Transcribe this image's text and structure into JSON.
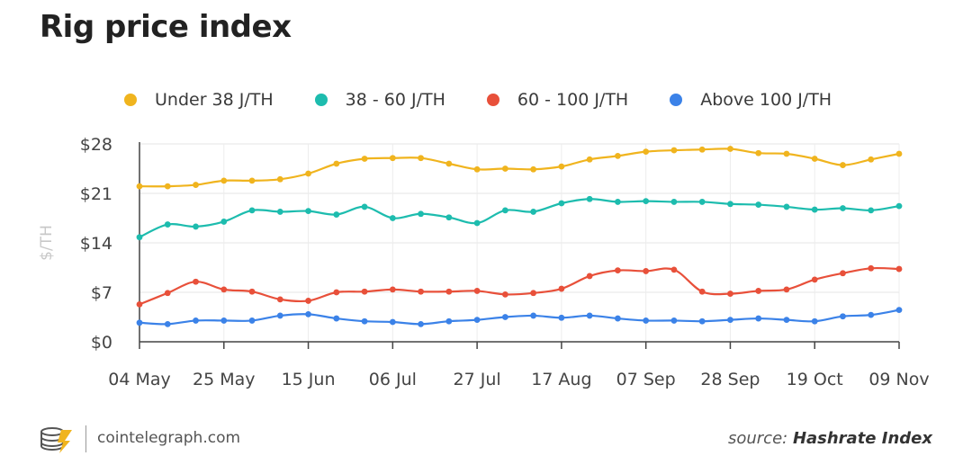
{
  "header": {
    "title": "Rig price index"
  },
  "footer": {
    "site": "cointelegraph.com",
    "source_label": "source:",
    "source_name": "Hashrate Index"
  },
  "chart_data": {
    "type": "line",
    "title": "Rig price index",
    "ylabel": "$/TH",
    "xlabel": "",
    "ylim": [
      0,
      28
    ],
    "yticks": [
      0,
      7,
      14,
      21,
      28
    ],
    "ytick_labels": [
      "$0",
      "$7",
      "$14",
      "$21",
      "$28"
    ],
    "xtick_labels": [
      "04 May",
      "25 May",
      "15 Jun",
      "06 Jul",
      "27 Jul",
      "17 Aug",
      "07 Sep",
      "28 Sep",
      "19 Oct",
      "09 Nov"
    ],
    "grid": true,
    "legend_position": "top",
    "x": [
      "2020-05-04",
      "2020-05-11",
      "2020-05-18",
      "2020-05-25",
      "2020-06-01",
      "2020-06-08",
      "2020-06-15",
      "2020-06-22",
      "2020-06-29",
      "2020-07-06",
      "2020-07-13",
      "2020-07-20",
      "2020-07-27",
      "2020-08-03",
      "2020-08-10",
      "2020-08-17",
      "2020-08-24",
      "2020-08-31",
      "2020-09-07",
      "2020-09-14",
      "2020-09-21",
      "2020-09-28",
      "2020-10-05",
      "2020-10-12",
      "2020-10-19",
      "2020-10-26",
      "2020-11-02",
      "2020-11-09"
    ],
    "series": [
      {
        "name": "Under 38 J/TH",
        "color": "#f0b41e",
        "values": [
          22.0,
          22.0,
          22.2,
          22.8,
          22.8,
          23.0,
          23.8,
          25.2,
          25.9,
          26.0,
          26.0,
          25.2,
          24.4,
          24.5,
          24.4,
          24.8,
          25.8,
          26.3,
          26.9,
          27.1,
          27.2,
          27.3,
          26.7,
          26.6,
          25.9,
          25.0,
          25.8,
          26.6
        ]
      },
      {
        "name": "38 - 60 J/TH",
        "color": "#1dbcae",
        "values": [
          14.8,
          16.6,
          16.3,
          17.0,
          18.6,
          18.4,
          18.5,
          18.0,
          19.1,
          17.5,
          18.1,
          17.6,
          16.8,
          18.6,
          18.4,
          19.6,
          20.2,
          19.8,
          19.9,
          19.8,
          19.8,
          19.5,
          19.4,
          19.1,
          18.7,
          18.9,
          18.6,
          19.2
        ]
      },
      {
        "name": "60 - 100 J/TH",
        "color": "#e8503a",
        "values": [
          5.3,
          6.9,
          8.5,
          7.4,
          7.1,
          6.0,
          5.8,
          7.0,
          7.1,
          7.4,
          7.1,
          7.1,
          7.2,
          6.7,
          6.9,
          7.5,
          9.3,
          10.1,
          10.0,
          10.2,
          7.1,
          6.8,
          7.2,
          7.4,
          8.8,
          9.7,
          10.4,
          10.3
        ]
      },
      {
        "name": "Above 100 J/TH",
        "color": "#3b82e8",
        "values": [
          2.7,
          2.5,
          3.0,
          3.0,
          3.0,
          3.7,
          3.9,
          3.3,
          2.9,
          2.8,
          2.5,
          2.9,
          3.1,
          3.5,
          3.7,
          3.4,
          3.7,
          3.3,
          3.0,
          3.0,
          2.9,
          3.1,
          3.3,
          3.1,
          2.9,
          3.6,
          3.8,
          4.5
        ]
      }
    ]
  }
}
